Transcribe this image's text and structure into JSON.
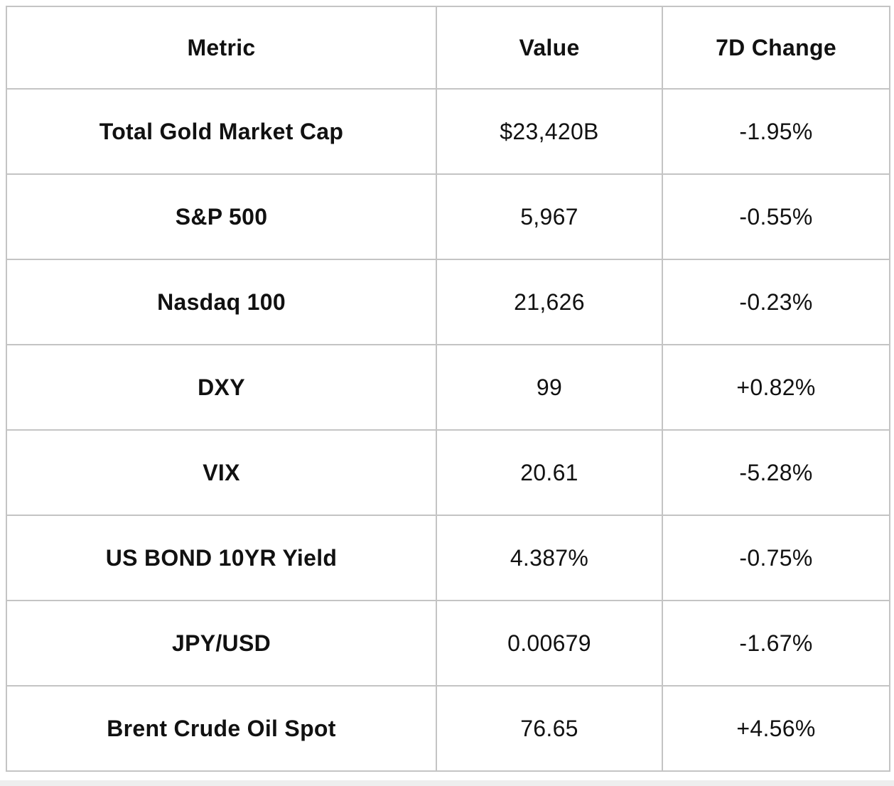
{
  "chart_data": {
    "type": "table",
    "columns": [
      "Metric",
      "Value",
      "7D Change"
    ],
    "rows": [
      [
        "Total Gold Market Cap",
        "$23,420B",
        "-1.95%"
      ],
      [
        "S&P 500",
        "5,967",
        "-0.55%"
      ],
      [
        "Nasdaq 100",
        "21,626",
        "-0.23%"
      ],
      [
        "DXY",
        "99",
        "+0.82%"
      ],
      [
        "VIX",
        "20.61",
        "-5.28%"
      ],
      [
        "US BOND 10YR Yield",
        "4.387%",
        "-0.75%"
      ],
      [
        "JPY/USD",
        "0.00679",
        "-1.67%"
      ],
      [
        "Brent Crude Oil Spot",
        "76.65",
        "+4.56%"
      ]
    ],
    "title": "",
    "layout_hints": {
      "grid": true,
      "header_bold": true,
      "metric_column_bold": true,
      "text_align": "center"
    }
  },
  "colors": {
    "border": "#c4c4c4",
    "text": "#111111",
    "background": "#ffffff",
    "bottom_strip": "#eeeeee"
  }
}
